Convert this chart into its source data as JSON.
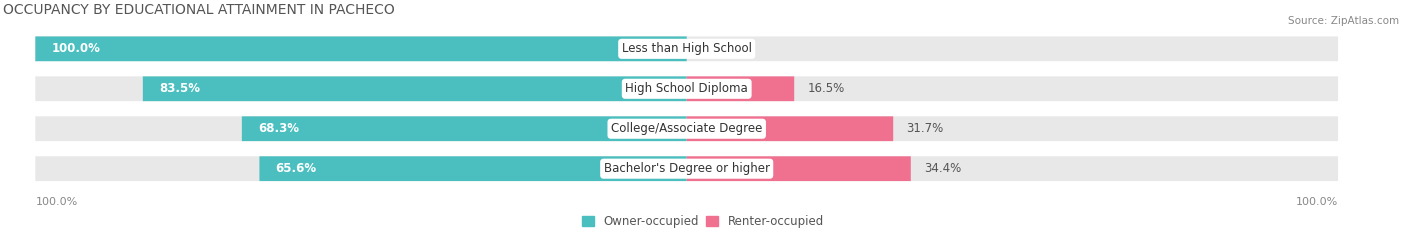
{
  "title": "OCCUPANCY BY EDUCATIONAL ATTAINMENT IN PACHECO",
  "source": "Source: ZipAtlas.com",
  "categories": [
    "Less than High School",
    "High School Diploma",
    "College/Associate Degree",
    "Bachelor's Degree or higher"
  ],
  "owner_pct": [
    100.0,
    83.5,
    68.3,
    65.6
  ],
  "renter_pct": [
    0.0,
    16.5,
    31.7,
    34.4
  ],
  "owner_color": "#4BBFBF",
  "renter_color": "#F07090",
  "bg_color": "#E8E8E8",
  "title_fontsize": 10,
  "pct_fontsize": 8.5,
  "cat_fontsize": 8.5,
  "axis_label_fontsize": 8,
  "legend_fontsize": 8.5,
  "x_left_label": "100.0%",
  "x_right_label": "100.0%"
}
